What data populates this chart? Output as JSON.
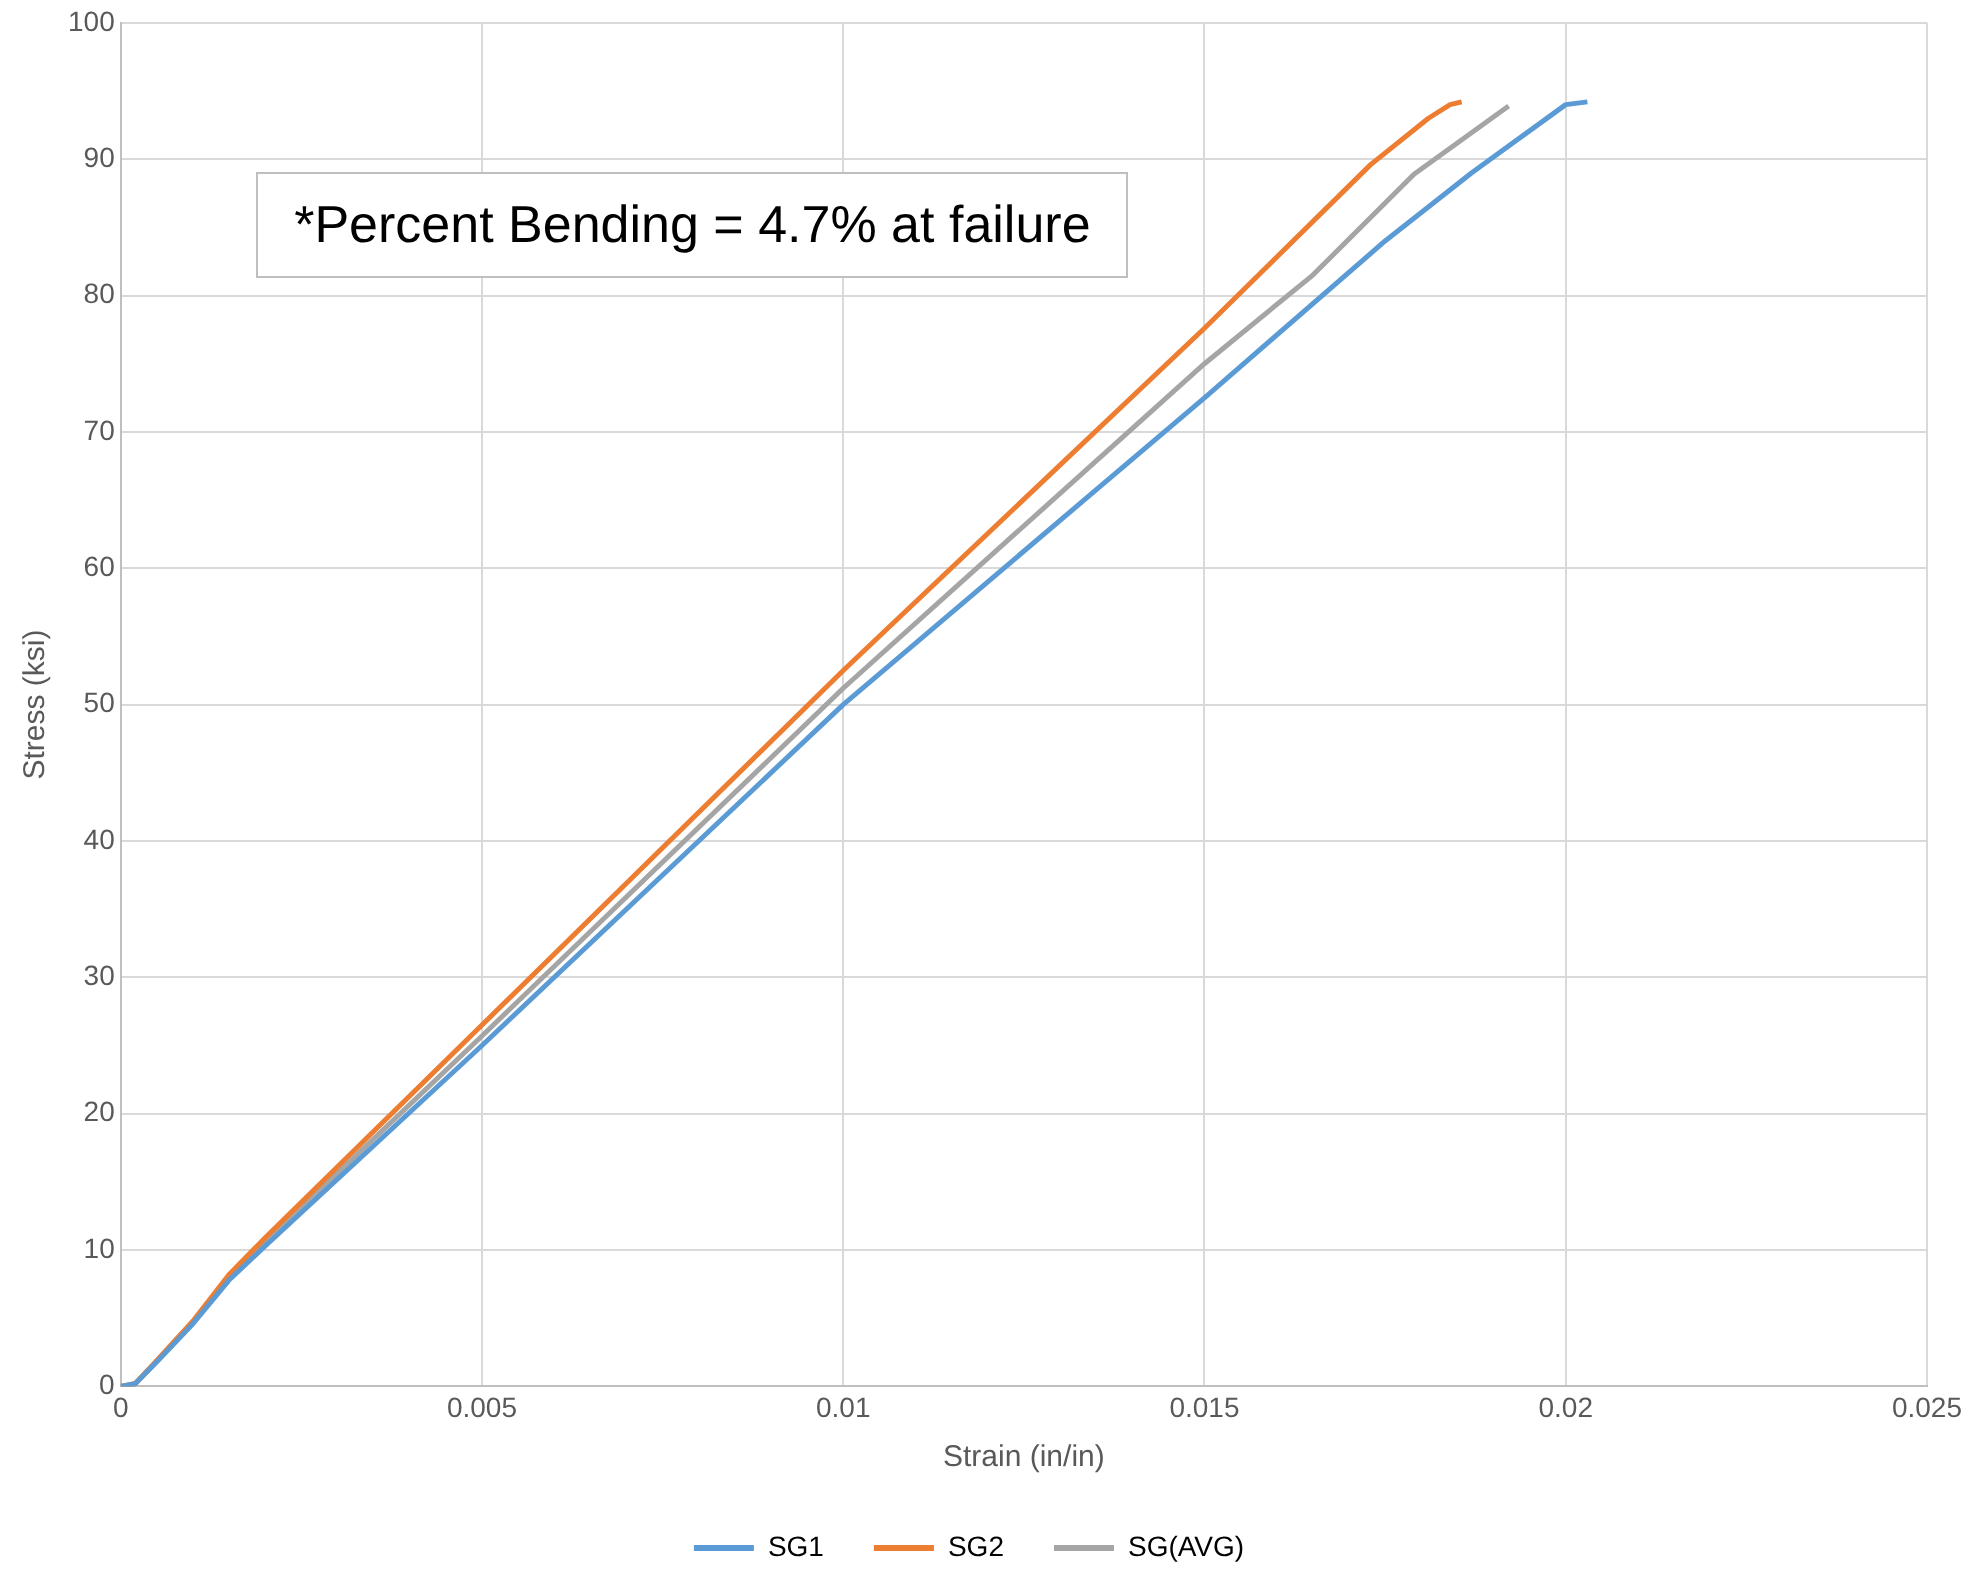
{
  "chart_data": {
    "type": "line",
    "xlabel": "Strain (in/in)",
    "ylabel": "Stress (ksi)",
    "xlim": [
      0,
      0.025
    ],
    "xticks": [
      0,
      0.005,
      0.01,
      0.015,
      0.02,
      0.025
    ],
    "ylim": [
      0,
      100
    ],
    "yticks": [
      0,
      10,
      20,
      30,
      40,
      50,
      60,
      70,
      80,
      90,
      100
    ],
    "grid": true,
    "legend": "bottom",
    "marker": "none",
    "line_style": "solid",
    "annotations": [
      "*Percent Bending = 4.7% at failure"
    ],
    "series": [
      {
        "name": "SG1",
        "color": "#5b9bd5",
        "x": [
          0,
          0.0002,
          0.0005,
          0.001,
          0.0015,
          0.002,
          0.005,
          0.01,
          0.015,
          0.0175,
          0.0187,
          0.02,
          0.0203
        ],
        "values": [
          0,
          0.2,
          1.8,
          4.6,
          7.8,
          10.3,
          25,
          50,
          72.5,
          84,
          89,
          94,
          94.2
        ]
      },
      {
        "name": "SG2",
        "color": "#ed7d31",
        "x": [
          0,
          0.0002,
          0.0005,
          0.001,
          0.0015,
          0.002,
          0.005,
          0.01,
          0.015,
          0.0173,
          0.0181,
          0.0184,
          0.01856
        ],
        "values": [
          0,
          0.2,
          1.9,
          4.8,
          8.2,
          10.9,
          26.5,
          52.5,
          77.6,
          89.6,
          93,
          94,
          94.2
        ]
      },
      {
        "name": "SG(AVG)",
        "color": "#a5a5a5",
        "x": [
          0,
          0.0002,
          0.0005,
          0.001,
          0.0015,
          0.002,
          0.005,
          0.01,
          0.015,
          0.0165,
          0.0179,
          0.01921
        ],
        "values": [
          0,
          0.2,
          1.85,
          4.7,
          8,
          10.6,
          25.7,
          51.2,
          75,
          81.5,
          88.9,
          93.9
        ]
      }
    ]
  }
}
